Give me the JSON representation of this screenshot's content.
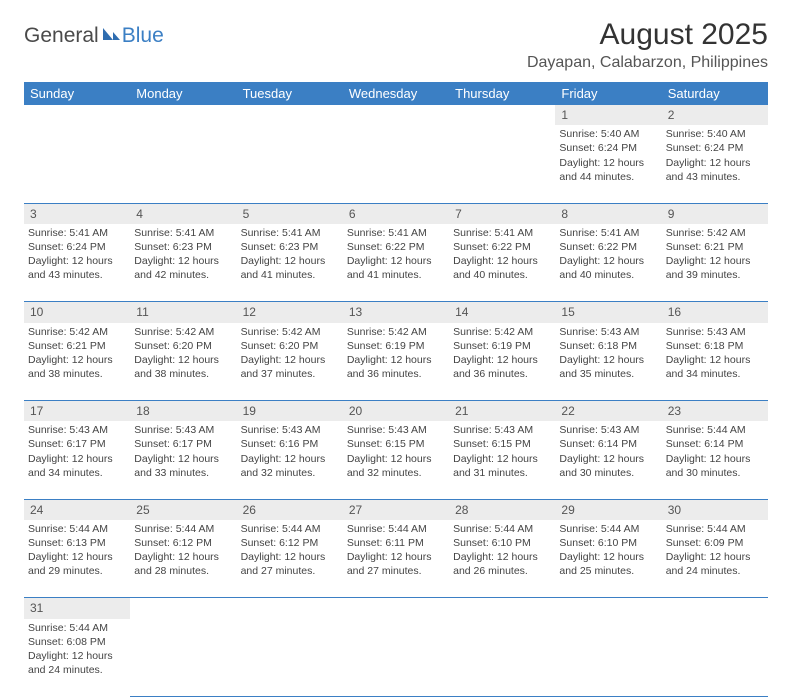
{
  "brand": {
    "general": "General",
    "blue": "Blue"
  },
  "title": "August 2025",
  "location": "Dayapan, Calabarzon, Philippines",
  "colors": {
    "header_bg": "#3b7fc4",
    "header_text": "#ffffff",
    "daynum_bg": "#ececec",
    "cell_border": "#3b7fc4",
    "text": "#444444"
  },
  "day_headers": [
    "Sunday",
    "Monday",
    "Tuesday",
    "Wednesday",
    "Thursday",
    "Friday",
    "Saturday"
  ],
  "weeks": [
    [
      null,
      null,
      null,
      null,
      null,
      {
        "n": "1",
        "sr": "Sunrise: 5:40 AM",
        "ss": "Sunset: 6:24 PM",
        "d1": "Daylight: 12 hours",
        "d2": "and 44 minutes."
      },
      {
        "n": "2",
        "sr": "Sunrise: 5:40 AM",
        "ss": "Sunset: 6:24 PM",
        "d1": "Daylight: 12 hours",
        "d2": "and 43 minutes."
      }
    ],
    [
      {
        "n": "3",
        "sr": "Sunrise: 5:41 AM",
        "ss": "Sunset: 6:24 PM",
        "d1": "Daylight: 12 hours",
        "d2": "and 43 minutes."
      },
      {
        "n": "4",
        "sr": "Sunrise: 5:41 AM",
        "ss": "Sunset: 6:23 PM",
        "d1": "Daylight: 12 hours",
        "d2": "and 42 minutes."
      },
      {
        "n": "5",
        "sr": "Sunrise: 5:41 AM",
        "ss": "Sunset: 6:23 PM",
        "d1": "Daylight: 12 hours",
        "d2": "and 41 minutes."
      },
      {
        "n": "6",
        "sr": "Sunrise: 5:41 AM",
        "ss": "Sunset: 6:22 PM",
        "d1": "Daylight: 12 hours",
        "d2": "and 41 minutes."
      },
      {
        "n": "7",
        "sr": "Sunrise: 5:41 AM",
        "ss": "Sunset: 6:22 PM",
        "d1": "Daylight: 12 hours",
        "d2": "and 40 minutes."
      },
      {
        "n": "8",
        "sr": "Sunrise: 5:41 AM",
        "ss": "Sunset: 6:22 PM",
        "d1": "Daylight: 12 hours",
        "d2": "and 40 minutes."
      },
      {
        "n": "9",
        "sr": "Sunrise: 5:42 AM",
        "ss": "Sunset: 6:21 PM",
        "d1": "Daylight: 12 hours",
        "d2": "and 39 minutes."
      }
    ],
    [
      {
        "n": "10",
        "sr": "Sunrise: 5:42 AM",
        "ss": "Sunset: 6:21 PM",
        "d1": "Daylight: 12 hours",
        "d2": "and 38 minutes."
      },
      {
        "n": "11",
        "sr": "Sunrise: 5:42 AM",
        "ss": "Sunset: 6:20 PM",
        "d1": "Daylight: 12 hours",
        "d2": "and 38 minutes."
      },
      {
        "n": "12",
        "sr": "Sunrise: 5:42 AM",
        "ss": "Sunset: 6:20 PM",
        "d1": "Daylight: 12 hours",
        "d2": "and 37 minutes."
      },
      {
        "n": "13",
        "sr": "Sunrise: 5:42 AM",
        "ss": "Sunset: 6:19 PM",
        "d1": "Daylight: 12 hours",
        "d2": "and 36 minutes."
      },
      {
        "n": "14",
        "sr": "Sunrise: 5:42 AM",
        "ss": "Sunset: 6:19 PM",
        "d1": "Daylight: 12 hours",
        "d2": "and 36 minutes."
      },
      {
        "n": "15",
        "sr": "Sunrise: 5:43 AM",
        "ss": "Sunset: 6:18 PM",
        "d1": "Daylight: 12 hours",
        "d2": "and 35 minutes."
      },
      {
        "n": "16",
        "sr": "Sunrise: 5:43 AM",
        "ss": "Sunset: 6:18 PM",
        "d1": "Daylight: 12 hours",
        "d2": "and 34 minutes."
      }
    ],
    [
      {
        "n": "17",
        "sr": "Sunrise: 5:43 AM",
        "ss": "Sunset: 6:17 PM",
        "d1": "Daylight: 12 hours",
        "d2": "and 34 minutes."
      },
      {
        "n": "18",
        "sr": "Sunrise: 5:43 AM",
        "ss": "Sunset: 6:17 PM",
        "d1": "Daylight: 12 hours",
        "d2": "and 33 minutes."
      },
      {
        "n": "19",
        "sr": "Sunrise: 5:43 AM",
        "ss": "Sunset: 6:16 PM",
        "d1": "Daylight: 12 hours",
        "d2": "and 32 minutes."
      },
      {
        "n": "20",
        "sr": "Sunrise: 5:43 AM",
        "ss": "Sunset: 6:15 PM",
        "d1": "Daylight: 12 hours",
        "d2": "and 32 minutes."
      },
      {
        "n": "21",
        "sr": "Sunrise: 5:43 AM",
        "ss": "Sunset: 6:15 PM",
        "d1": "Daylight: 12 hours",
        "d2": "and 31 minutes."
      },
      {
        "n": "22",
        "sr": "Sunrise: 5:43 AM",
        "ss": "Sunset: 6:14 PM",
        "d1": "Daylight: 12 hours",
        "d2": "and 30 minutes."
      },
      {
        "n": "23",
        "sr": "Sunrise: 5:44 AM",
        "ss": "Sunset: 6:14 PM",
        "d1": "Daylight: 12 hours",
        "d2": "and 30 minutes."
      }
    ],
    [
      {
        "n": "24",
        "sr": "Sunrise: 5:44 AM",
        "ss": "Sunset: 6:13 PM",
        "d1": "Daylight: 12 hours",
        "d2": "and 29 minutes."
      },
      {
        "n": "25",
        "sr": "Sunrise: 5:44 AM",
        "ss": "Sunset: 6:12 PM",
        "d1": "Daylight: 12 hours",
        "d2": "and 28 minutes."
      },
      {
        "n": "26",
        "sr": "Sunrise: 5:44 AM",
        "ss": "Sunset: 6:12 PM",
        "d1": "Daylight: 12 hours",
        "d2": "and 27 minutes."
      },
      {
        "n": "27",
        "sr": "Sunrise: 5:44 AM",
        "ss": "Sunset: 6:11 PM",
        "d1": "Daylight: 12 hours",
        "d2": "and 27 minutes."
      },
      {
        "n": "28",
        "sr": "Sunrise: 5:44 AM",
        "ss": "Sunset: 6:10 PM",
        "d1": "Daylight: 12 hours",
        "d2": "and 26 minutes."
      },
      {
        "n": "29",
        "sr": "Sunrise: 5:44 AM",
        "ss": "Sunset: 6:10 PM",
        "d1": "Daylight: 12 hours",
        "d2": "and 25 minutes."
      },
      {
        "n": "30",
        "sr": "Sunrise: 5:44 AM",
        "ss": "Sunset: 6:09 PM",
        "d1": "Daylight: 12 hours",
        "d2": "and 24 minutes."
      }
    ],
    [
      {
        "n": "31",
        "sr": "Sunrise: 5:44 AM",
        "ss": "Sunset: 6:08 PM",
        "d1": "Daylight: 12 hours",
        "d2": "and 24 minutes."
      },
      null,
      null,
      null,
      null,
      null,
      null
    ]
  ]
}
